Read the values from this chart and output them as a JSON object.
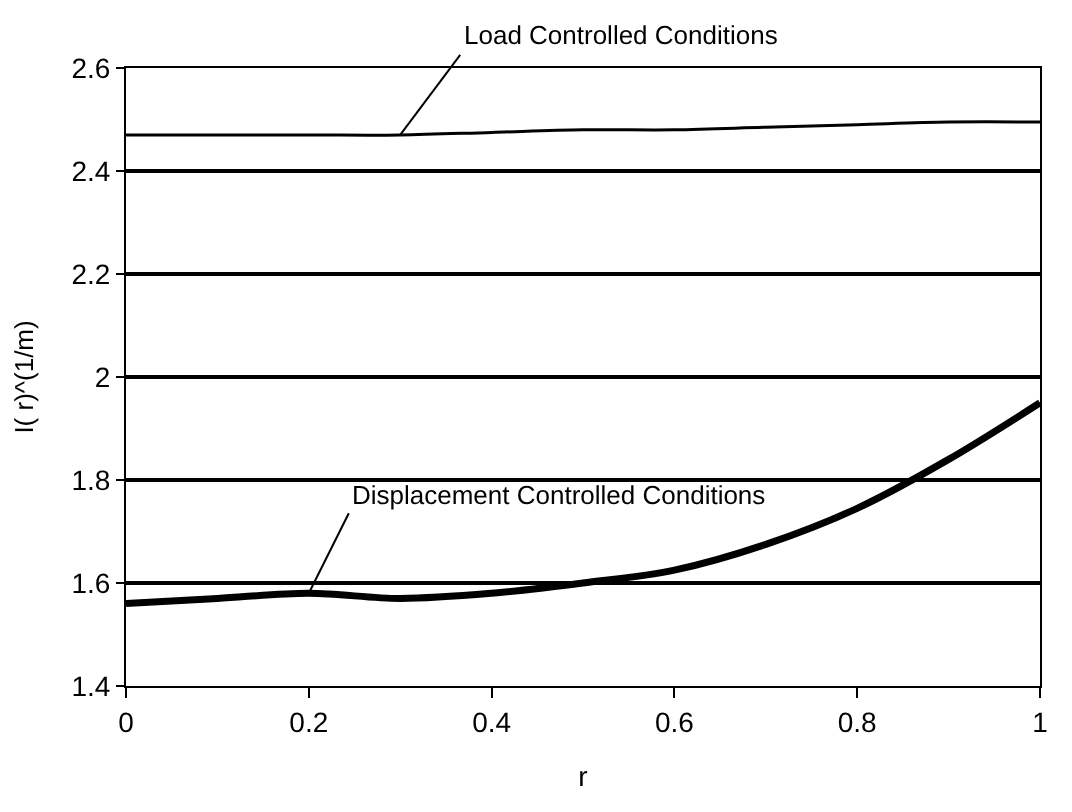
{
  "chart_data": {
    "type": "line",
    "xlabel": "r",
    "ylabel": "I( r)^(1/m)",
    "x": [
      0,
      0.1,
      0.2,
      0.3,
      0.4,
      0.5,
      0.6,
      0.7,
      0.8,
      0.9,
      1
    ],
    "series": [
      {
        "name": "Load Controlled Conditions",
        "color": "#000000",
        "values": [
          2.47,
          2.47,
          2.47,
          2.47,
          2.475,
          2.48,
          2.48,
          2.485,
          2.49,
          2.495,
          2.495
        ]
      },
      {
        "name": "Displacement Controlled Conditions",
        "color": "#000000",
        "values": [
          1.56,
          1.57,
          1.58,
          1.57,
          1.58,
          1.6,
          1.625,
          1.675,
          1.745,
          1.84,
          1.95
        ]
      }
    ],
    "xlim": [
      0,
      1
    ],
    "xticks": [
      0,
      0.2,
      0.4,
      0.6,
      0.8,
      1
    ],
    "ylim": [
      1.4,
      2.6
    ],
    "yticks": [
      1.4,
      1.6,
      1.8,
      2,
      2.2,
      2.4,
      2.6
    ],
    "grid": "y",
    "legend": false,
    "marker": "none",
    "line_style": "solid"
  }
}
